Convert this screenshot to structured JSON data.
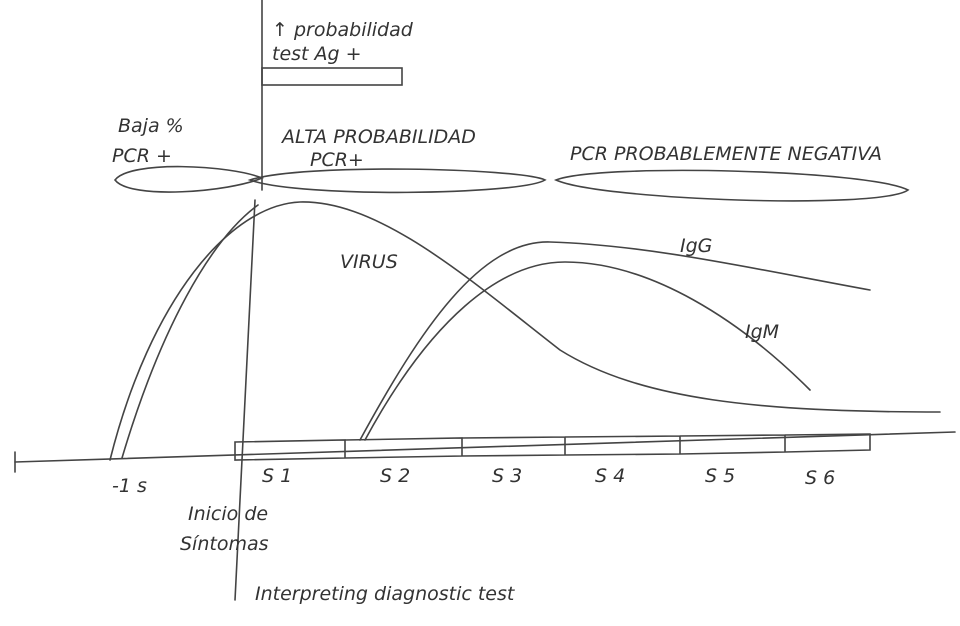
{
  "header": {
    "title": "Interpreting diagnostic test"
  },
  "labels": {
    "ag_line1": "↑ probabilidad",
    "ag_line2": "test Ag +",
    "low_line1": "Baja %",
    "low_line2": "PCR +",
    "high_line1": "ALTA PROBABILIDAD",
    "high_line2": "PCR+",
    "negative": "PCR PROBABLEMENTE NEGATIVA",
    "onset_line1": "Inicio de",
    "onset_line2": "Síntomas"
  },
  "curves": {
    "virus": "VIRUS",
    "igg": "IgG",
    "igm": "IgM"
  },
  "axis": {
    "ticks": [
      "-1 s",
      "S 1",
      "S 2",
      "S 3",
      "S 4",
      "S 5",
      "S 6"
    ]
  }
}
